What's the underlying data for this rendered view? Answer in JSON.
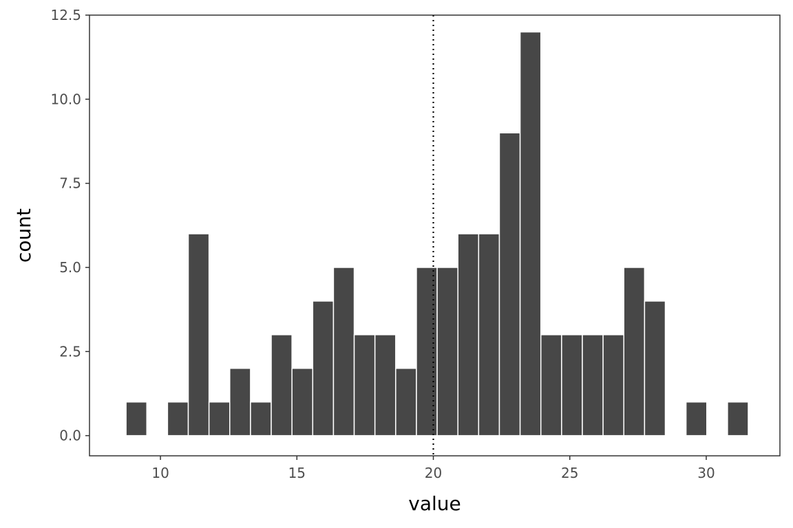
{
  "chart_data": {
    "type": "bar",
    "xlabel": "value",
    "ylabel": "count",
    "xlim": [
      7.4,
      32.7
    ],
    "ylim": [
      -0.6,
      12.5
    ],
    "bin_width": 0.76,
    "x_ticks": [
      10,
      15,
      20,
      25,
      30
    ],
    "x_tick_labels": [
      "10",
      "15",
      "20",
      "25",
      "30"
    ],
    "y_ticks": [
      0,
      2.5,
      5,
      7.5,
      10,
      12.5
    ],
    "y_tick_labels": [
      "0.0",
      "2.5",
      "5.0",
      "7.5",
      "10.0",
      "12.5"
    ],
    "bin_centers": [
      9.12,
      10.64,
      11.4,
      12.16,
      12.92,
      13.68,
      14.44,
      15.2,
      15.96,
      16.72,
      17.48,
      18.24,
      19.0,
      19.76,
      20.52,
      21.28,
      22.04,
      22.8,
      23.56,
      24.32,
      25.08,
      25.84,
      26.6,
      27.36,
      28.12,
      29.64,
      31.16
    ],
    "counts": [
      1,
      1,
      6,
      1,
      2,
      1,
      3,
      2,
      4,
      5,
      3,
      3,
      2,
      5,
      5,
      6,
      6,
      9,
      12,
      3,
      3,
      3,
      3,
      5,
      4,
      1,
      1
    ],
    "reference_line": {
      "x": 20,
      "style": "dotted"
    },
    "grid": false,
    "bar_color": "#474747",
    "bar_edge_color": "#ffffff",
    "panel_border_color": "#333333"
  }
}
